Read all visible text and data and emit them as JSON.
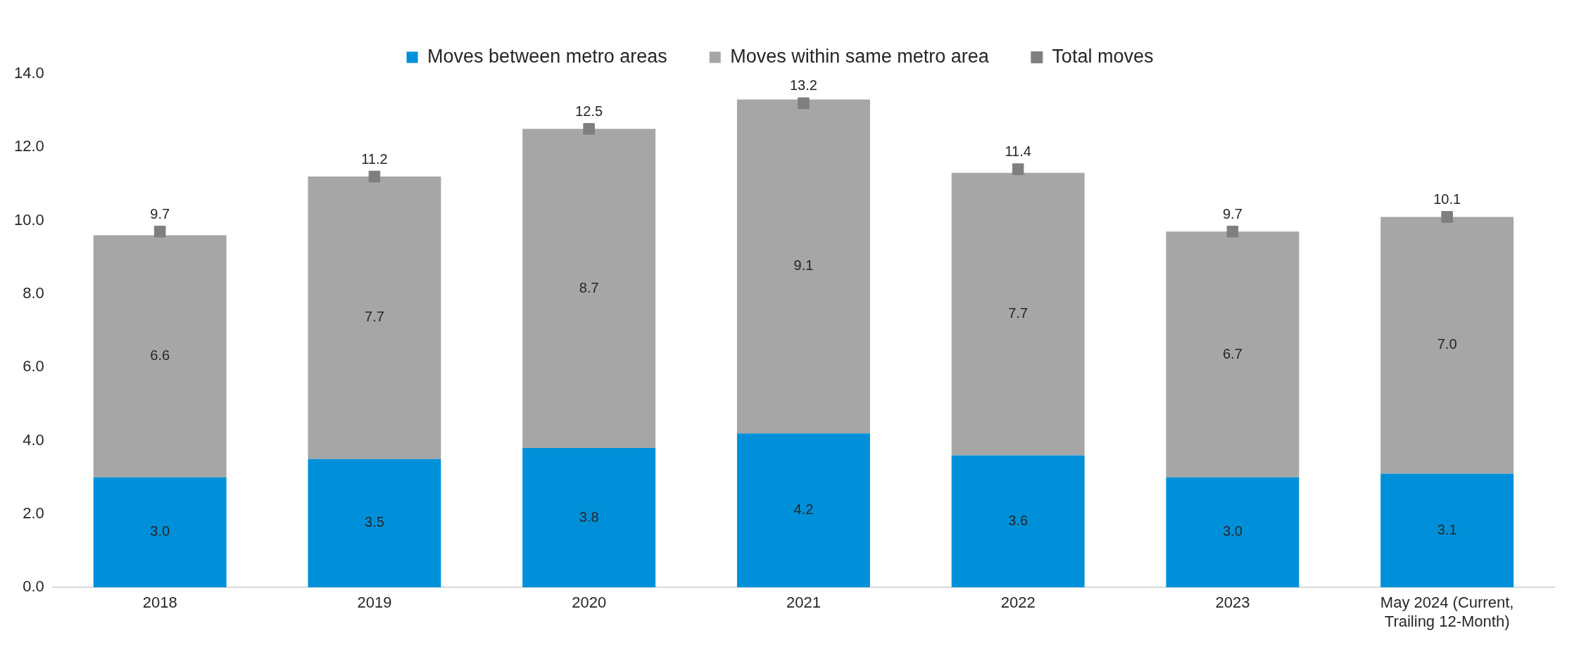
{
  "chart_data": {
    "type": "bar",
    "stacked": true,
    "categories": [
      "2018",
      "2019",
      "2020",
      "2021",
      "2022",
      "2023",
      "May 2024 (Current, Trailing 12-Month)"
    ],
    "series": [
      {
        "name": "Moves between metro areas",
        "color": "#0090da",
        "values": [
          3.0,
          3.5,
          3.8,
          4.2,
          3.6,
          3.0,
          3.1
        ],
        "value_labels": [
          "3.0",
          "3.5",
          "3.8",
          "4.2",
          "3.6",
          "3.0",
          "3.1"
        ]
      },
      {
        "name": "Moves within same metro area",
        "color": "#a6a6a6",
        "values": [
          6.6,
          7.7,
          8.7,
          9.1,
          7.7,
          6.7,
          7.0
        ],
        "value_labels": [
          "6.6",
          "7.7",
          "8.7",
          "9.1",
          "7.7",
          "6.7",
          "7.0"
        ]
      },
      {
        "name": "Total moves",
        "type": "scatter",
        "color": "#7f7f7f",
        "values": [
          9.7,
          11.2,
          12.5,
          13.2,
          11.4,
          9.7,
          10.1
        ],
        "value_labels": [
          "9.7",
          "11.2",
          "12.5",
          "13.2",
          "11.4",
          "9.7",
          "10.1"
        ]
      }
    ],
    "marker": "square",
    "ylim": [
      0,
      14
    ],
    "yticks": [
      {
        "value": 0,
        "label": "0.0"
      },
      {
        "value": 2,
        "label": "2.0"
      },
      {
        "value": 4,
        "label": "4.0"
      },
      {
        "value": 6,
        "label": "6.0"
      },
      {
        "value": 8,
        "label": "8.0"
      },
      {
        "value": 10,
        "label": "10.0"
      },
      {
        "value": 12,
        "label": "12.0"
      },
      {
        "value": 14,
        "label": "14.0"
      }
    ],
    "grid": false,
    "legend": "top"
  }
}
